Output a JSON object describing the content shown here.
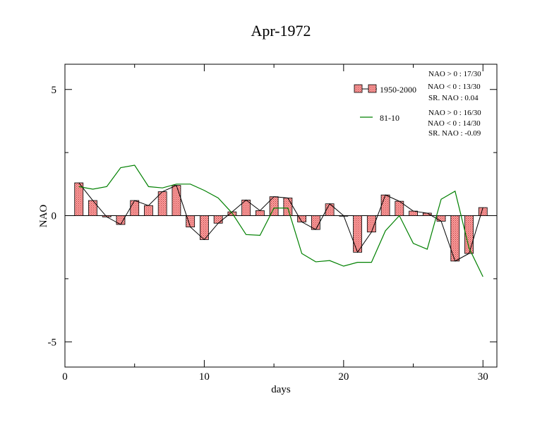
{
  "chart_data": {
    "type": "bar",
    "title": "Apr-1972",
    "xlabel": "days",
    "ylabel": "NAO",
    "xlim": [
      0,
      31
    ],
    "ylim": [
      -6,
      6
    ],
    "x_ticks": [
      0,
      10,
      20,
      30
    ],
    "y_ticks": [
      -5,
      0,
      5
    ],
    "x_tick_labels": [
      "0",
      "10",
      "20",
      "30"
    ],
    "y_tick_labels": [
      "-5",
      "0",
      "5"
    ],
    "x": [
      1,
      2,
      3,
      4,
      5,
      6,
      7,
      8,
      9,
      10,
      11,
      12,
      13,
      14,
      15,
      16,
      17,
      18,
      19,
      20,
      21,
      22,
      23,
      24,
      25,
      26,
      27,
      28,
      29,
      30
    ],
    "series": [
      {
        "name": "1950-2000",
        "kind": "bar",
        "color": "#ff9a9a",
        "values": [
          1.3,
          0.6,
          -0.05,
          -0.35,
          0.6,
          0.4,
          0.95,
          1.2,
          -0.45,
          -0.95,
          -0.3,
          0.15,
          0.62,
          0.2,
          0.75,
          0.7,
          -0.25,
          -0.55,
          0.47,
          0,
          -1.45,
          -0.65,
          0.82,
          0.57,
          0.18,
          0.1,
          -0.22,
          -1.8,
          -1.5,
          0.32
        ]
      },
      {
        "name": "81-10",
        "kind": "line",
        "color": "#008000",
        "values": [
          1.15,
          1.05,
          1.15,
          1.9,
          2.0,
          1.15,
          1.1,
          1.25,
          1.25,
          1.0,
          0.7,
          0.1,
          -0.75,
          -0.78,
          0.3,
          0.3,
          -1.5,
          -1.83,
          -1.78,
          -2.0,
          -1.85,
          -1.85,
          -0.6,
          0.0,
          -1.1,
          -1.33,
          0.65,
          0.97,
          -1.28,
          -2.42
        ]
      }
    ],
    "legend": {
      "placement": "top-right",
      "entries": [
        {
          "label": "1950-2000",
          "stats": [
            "NAO > 0 :  17/30",
            "NAO < 0 :  13/30",
            "SR. NAO :  0.04"
          ]
        },
        {
          "label": "81-10",
          "stats": [
            "NAO > 0 :  16/30",
            "NAO < 0 :  14/30",
            "SR. NAO :  -0.09"
          ]
        }
      ]
    },
    "grid": false
  }
}
